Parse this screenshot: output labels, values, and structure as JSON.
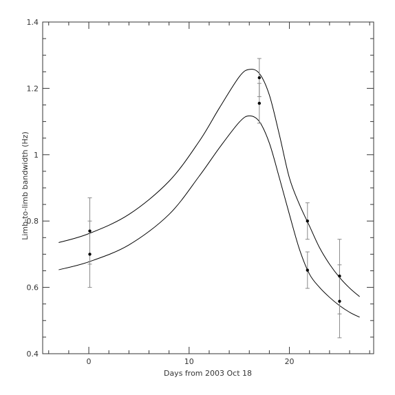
{
  "chart_data": {
    "type": "scatter",
    "title": "",
    "xlabel": "Days from 2003 Oct 18",
    "ylabel": "Limb-to-limb bandwidth (Hz)",
    "xlim": [
      -4.6,
      28.4
    ],
    "ylim": [
      0.4,
      1.4
    ],
    "x_ticks": [
      0,
      10,
      20
    ],
    "x_tick_labels": [
      "0",
      "10",
      "20"
    ],
    "y_ticks": [
      0.4,
      0.6,
      0.8,
      1.0,
      1.2,
      1.4
    ],
    "y_tick_labels": [
      "0.4",
      "0.6",
      "0.8",
      "1",
      "1.2",
      "1.4"
    ],
    "grid": false,
    "legend": "none",
    "series": [
      {
        "kind": "points_with_error_bars",
        "points": [
          {
            "x": 0.1,
            "y": 0.77,
            "err_low": 0.67,
            "err_high": 0.87
          },
          {
            "x": 0.1,
            "y": 0.7,
            "err_low": 0.6,
            "err_high": 0.8
          },
          {
            "x": 17.0,
            "y": 1.232,
            "err_low": 1.175,
            "err_high": 1.29
          },
          {
            "x": 17.0,
            "y": 1.155,
            "err_low": 1.095,
            "err_high": 1.215
          },
          {
            "x": 21.8,
            "y": 0.8,
            "err_low": 0.745,
            "err_high": 0.855
          },
          {
            "x": 21.8,
            "y": 0.652,
            "err_low": 0.597,
            "err_high": 0.707
          },
          {
            "x": 25.0,
            "y": 0.634,
            "err_low": 0.52,
            "err_high": 0.745
          },
          {
            "x": 25.0,
            "y": 0.558,
            "err_low": 0.448,
            "err_high": 0.668
          }
        ]
      },
      {
        "kind": "curve",
        "x": [
          -3,
          0,
          4,
          8,
          11,
          13,
          15,
          16,
          17,
          18,
          19,
          20,
          21,
          22,
          23,
          24,
          25,
          26,
          27
        ],
        "y": [
          0.735,
          0.762,
          0.82,
          0.92,
          1.04,
          1.14,
          1.235,
          1.257,
          1.245,
          1.18,
          1.06,
          0.93,
          0.85,
          0.785,
          0.72,
          0.67,
          0.63,
          0.598,
          0.572
        ]
      },
      {
        "kind": "curve",
        "x": [
          -3,
          0,
          4,
          8,
          11,
          13,
          15,
          16,
          17,
          18,
          19,
          20,
          21,
          22,
          23,
          24,
          25,
          26,
          27
        ],
        "y": [
          0.653,
          0.677,
          0.728,
          0.82,
          0.935,
          1.02,
          1.098,
          1.117,
          1.1,
          1.035,
          0.93,
          0.82,
          0.715,
          0.64,
          0.6,
          0.57,
          0.545,
          0.525,
          0.51
        ]
      }
    ],
    "colors": {
      "axes": "#333333",
      "marks": "#000000",
      "error_bars": "#888888"
    }
  }
}
